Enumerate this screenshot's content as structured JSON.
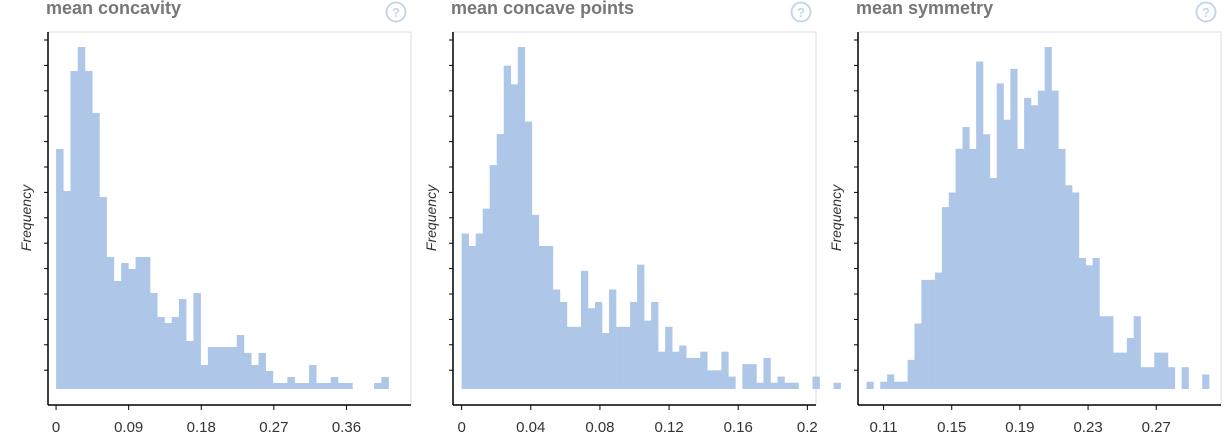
{
  "icons": {
    "help": "question-circle-icon"
  },
  "colors": {
    "bar": "#aec7e8",
    "axis": "#000000",
    "frame": "#dddddd",
    "title": "#777777",
    "help": "#c5d6ec"
  },
  "chart_data": [
    {
      "type": "bar",
      "title": "mean concavity",
      "ylabel": "Frequency",
      "xlabel": "",
      "xlim": [
        -0.01,
        0.44
      ],
      "x_ticks": [
        "0",
        "0.09",
        "0.18",
        "0.27",
        "0.36"
      ],
      "bin_start": 0,
      "bin_width": 0.00896,
      "values": [
        40,
        33,
        53,
        57,
        53,
        46,
        32,
        22,
        18,
        21,
        20,
        22,
        22,
        16,
        12,
        11,
        12,
        15,
        8,
        16,
        4,
        7,
        7,
        7,
        7,
        9,
        6,
        4,
        6,
        3,
        1,
        1,
        2,
        1,
        1,
        4,
        1,
        1,
        2,
        1,
        1,
        0,
        0,
        0,
        1,
        2
      ]
    },
    {
      "type": "bar",
      "title": "mean concave points",
      "ylabel": "Frequency",
      "xlabel": "",
      "xlim": [
        -0.005,
        0.205
      ],
      "x_ticks": [
        "0",
        "0.04",
        "0.08",
        "0.12",
        "0.16",
        "0.2"
      ],
      "bin_start": 0,
      "bin_width": 0.00406,
      "values": [
        25,
        23,
        25,
        29,
        36,
        41,
        52,
        49,
        55,
        43,
        28,
        23,
        23,
        16,
        14,
        10,
        10,
        19,
        13,
        14,
        9,
        16,
        10,
        10,
        14,
        20,
        11,
        14,
        6,
        10,
        6,
        7,
        5,
        5,
        6,
        3,
        3,
        6,
        2,
        0,
        4,
        4,
        1,
        5,
        1,
        2,
        1,
        1,
        0,
        0,
        2,
        0,
        0,
        1
      ]
    },
    {
      "type": "bar",
      "title": "mean symmetry",
      "ylabel": "Frequency",
      "xlabel": "",
      "xlim": [
        0.095,
        0.308
      ],
      "x_ticks": [
        "0.11",
        "0.15",
        "0.19",
        "0.23",
        "0.27"
      ],
      "bin_start": 0.1,
      "bin_width": 0.00402,
      "values": [
        1,
        0,
        1,
        2,
        1,
        1,
        4,
        9,
        15,
        15,
        16,
        25,
        27,
        33,
        36,
        33,
        45,
        35,
        29,
        42,
        37,
        44,
        33,
        40,
        39,
        41,
        47,
        41,
        33,
        28,
        27,
        18,
        17,
        18,
        10,
        10,
        5,
        5,
        7,
        10,
        3,
        3,
        5,
        5,
        3,
        0,
        3,
        0,
        0,
        2,
        0,
        0
      ]
    }
  ]
}
